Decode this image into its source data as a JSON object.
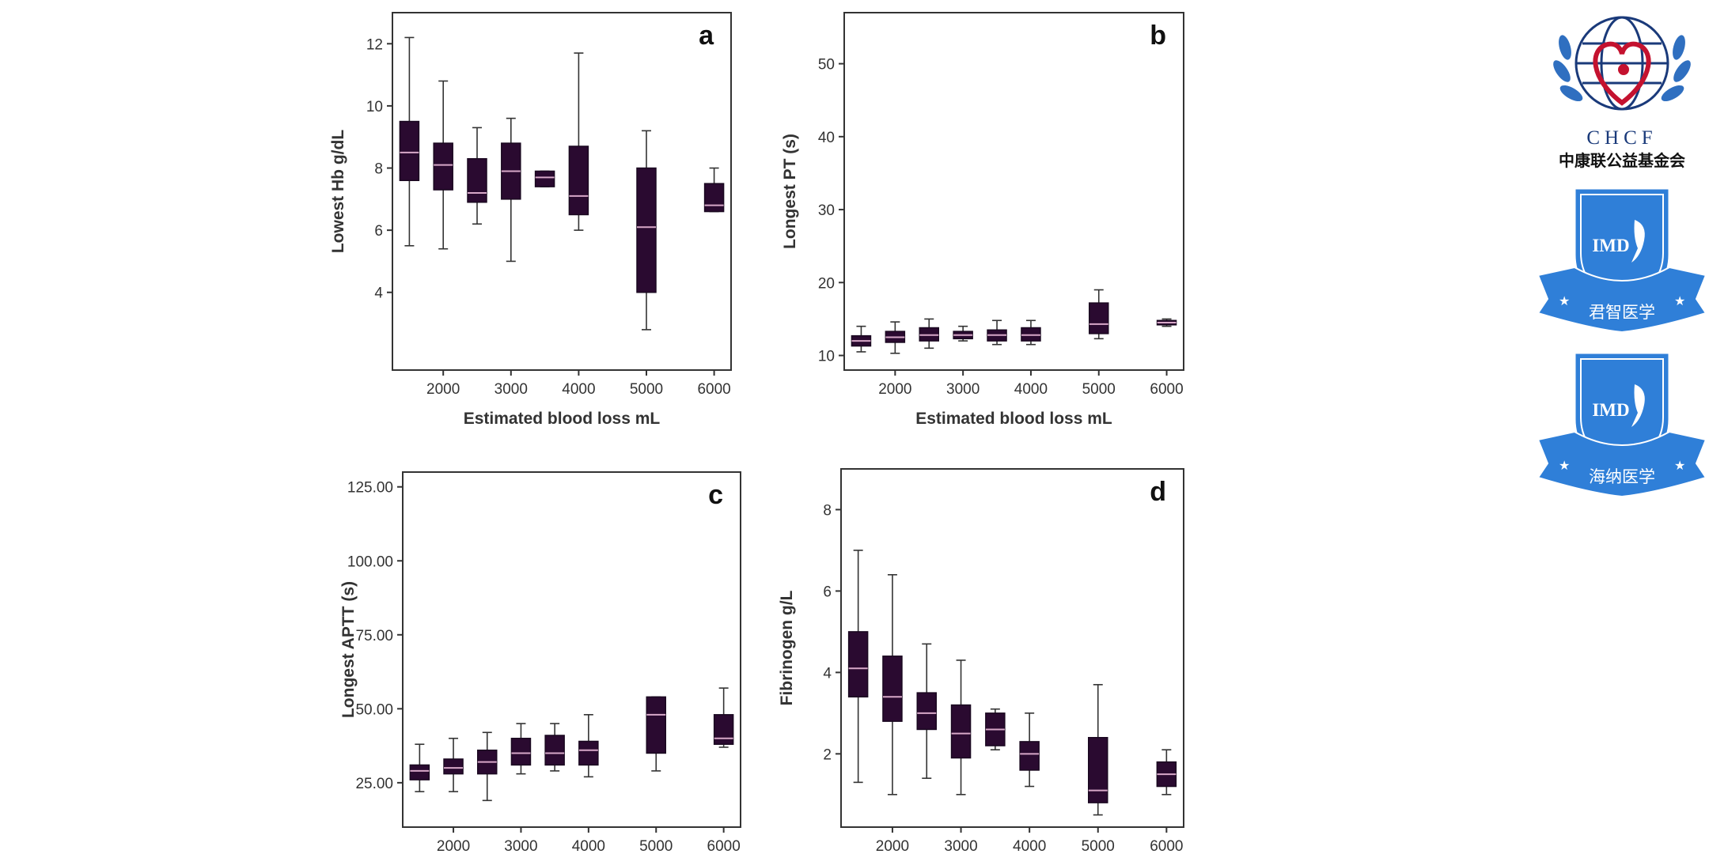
{
  "colors": {
    "box_fill": "#2a0a30",
    "median": "#d7a8c8",
    "axis": "#333333",
    "logo_blue": "#2f7fd8",
    "logo_navy": "#1a3a7a",
    "logo_red": "#c4122f"
  },
  "chart_data": [
    {
      "id": "a",
      "type": "boxplot",
      "panel_label": "a",
      "xlabel": "Estimated blood loss mL",
      "ylabel": "Lowest Hb g/dL",
      "x_ticks": [
        "2000",
        "3000",
        "4000",
        "5000",
        "6000"
      ],
      "x_tick_values": [
        2000,
        3000,
        4000,
        5000,
        6000
      ],
      "xlim": [
        1250,
        6250
      ],
      "ylim": [
        1.5,
        13
      ],
      "y_ticks": [
        4,
        6,
        8,
        10,
        12
      ],
      "y_tick_labels": [
        "4",
        "6",
        "8",
        "10",
        "12"
      ],
      "boxes": [
        {
          "x": 1500,
          "min": 5.5,
          "q1": 7.6,
          "median": 8.5,
          "q3": 9.5,
          "max": 12.2
        },
        {
          "x": 2000,
          "min": 5.4,
          "q1": 7.3,
          "median": 8.1,
          "q3": 8.8,
          "max": 10.8
        },
        {
          "x": 2500,
          "min": 6.2,
          "q1": 6.9,
          "median": 7.2,
          "q3": 8.3,
          "max": 9.3
        },
        {
          "x": 3000,
          "min": 5.0,
          "q1": 7.0,
          "median": 7.9,
          "q3": 8.8,
          "max": 9.6
        },
        {
          "x": 3500,
          "min": 7.4,
          "q1": 7.4,
          "median": 7.7,
          "q3": 7.9,
          "max": 7.9
        },
        {
          "x": 4000,
          "min": 6.0,
          "q1": 6.5,
          "median": 7.1,
          "q3": 8.7,
          "max": 11.7
        },
        {
          "x": 5000,
          "min": 2.8,
          "q1": 4.0,
          "median": 6.1,
          "q3": 8.0,
          "max": 9.2
        },
        {
          "x": 6000,
          "min": 6.6,
          "q1": 6.6,
          "median": 6.8,
          "q3": 7.5,
          "max": 8.0
        }
      ]
    },
    {
      "id": "b",
      "type": "boxplot",
      "panel_label": "b",
      "xlabel": "Estimated blood loss mL",
      "ylabel": "Longest PT (s)",
      "x_ticks": [
        "2000",
        "3000",
        "4000",
        "5000",
        "6000"
      ],
      "x_tick_values": [
        2000,
        3000,
        4000,
        5000,
        6000
      ],
      "xlim": [
        1250,
        6250
      ],
      "ylim": [
        8,
        57
      ],
      "y_ticks": [
        10,
        20,
        30,
        40,
        50
      ],
      "y_tick_labels": [
        "10",
        "20",
        "30",
        "40",
        "50"
      ],
      "boxes": [
        {
          "x": 1500,
          "min": 10.5,
          "q1": 11.3,
          "median": 12.0,
          "q3": 12.7,
          "max": 14.0
        },
        {
          "x": 2000,
          "min": 10.3,
          "q1": 11.8,
          "median": 12.5,
          "q3": 13.3,
          "max": 14.6
        },
        {
          "x": 2500,
          "min": 11.0,
          "q1": 12.0,
          "median": 12.8,
          "q3": 13.8,
          "max": 15.0
        },
        {
          "x": 3000,
          "min": 12.0,
          "q1": 12.3,
          "median": 12.8,
          "q3": 13.3,
          "max": 14.0
        },
        {
          "x": 3500,
          "min": 11.5,
          "q1": 12.0,
          "median": 12.8,
          "q3": 13.5,
          "max": 14.8
        },
        {
          "x": 4000,
          "min": 11.5,
          "q1": 12.0,
          "median": 12.8,
          "q3": 13.8,
          "max": 14.8
        },
        {
          "x": 5000,
          "min": 12.3,
          "q1": 13.0,
          "median": 14.3,
          "q3": 17.2,
          "max": 19.0
        },
        {
          "x": 6000,
          "min": 14.0,
          "q1": 14.2,
          "median": 14.5,
          "q3": 14.8,
          "max": 15.0
        }
      ]
    },
    {
      "id": "c",
      "type": "boxplot",
      "panel_label": "c",
      "xlabel": "",
      "ylabel": "Longest APTT (s)",
      "x_ticks": [
        "2000",
        "3000",
        "4000",
        "5000",
        "6000"
      ],
      "x_tick_values": [
        2000,
        3000,
        4000,
        5000,
        6000
      ],
      "xlim": [
        1250,
        6250
      ],
      "ylim": [
        10,
        130
      ],
      "y_ticks": [
        25,
        50,
        75,
        100,
        125
      ],
      "y_tick_labels": [
        "25.00",
        "50.00",
        "75.00",
        "100.00",
        "125.00"
      ],
      "boxes": [
        {
          "x": 1500,
          "min": 22,
          "q1": 26,
          "median": 29,
          "q3": 31,
          "max": 38
        },
        {
          "x": 2000,
          "min": 22,
          "q1": 28,
          "median": 30,
          "q3": 33,
          "max": 40
        },
        {
          "x": 2500,
          "min": 19,
          "q1": 28,
          "median": 32,
          "q3": 36,
          "max": 42
        },
        {
          "x": 3000,
          "min": 28,
          "q1": 31,
          "median": 35,
          "q3": 40,
          "max": 45
        },
        {
          "x": 3500,
          "min": 29,
          "q1": 31,
          "median": 35,
          "q3": 41,
          "max": 45
        },
        {
          "x": 4000,
          "min": 27,
          "q1": 31,
          "median": 36,
          "q3": 39,
          "max": 48
        },
        {
          "x": 5000,
          "min": 29,
          "q1": 35,
          "median": 48,
          "q3": 54,
          "max": 54
        },
        {
          "x": 6000,
          "min": 37,
          "q1": 38,
          "median": 40,
          "q3": 48,
          "max": 57
        }
      ]
    },
    {
      "id": "d",
      "type": "boxplot",
      "panel_label": "d",
      "xlabel": "",
      "ylabel": "Fibrinogen g/L",
      "x_ticks": [
        "2000",
        "3000",
        "4000",
        "5000",
        "6000"
      ],
      "x_tick_values": [
        2000,
        3000,
        4000,
        5000,
        6000
      ],
      "xlim": [
        1250,
        6250
      ],
      "ylim": [
        0.2,
        9.0
      ],
      "y_ticks": [
        2,
        4,
        6,
        8
      ],
      "y_tick_labels": [
        "2",
        "4",
        "6",
        "8"
      ],
      "boxes": [
        {
          "x": 1500,
          "min": 1.3,
          "q1": 3.4,
          "median": 4.1,
          "q3": 5.0,
          "max": 7.0
        },
        {
          "x": 2000,
          "min": 1.0,
          "q1": 2.8,
          "median": 3.4,
          "q3": 4.4,
          "max": 6.4
        },
        {
          "x": 2500,
          "min": 1.4,
          "q1": 2.6,
          "median": 3.0,
          "q3": 3.5,
          "max": 4.7
        },
        {
          "x": 3000,
          "min": 1.0,
          "q1": 1.9,
          "median": 2.5,
          "q3": 3.2,
          "max": 4.3
        },
        {
          "x": 3500,
          "min": 2.1,
          "q1": 2.2,
          "median": 2.6,
          "q3": 3.0,
          "max": 3.1
        },
        {
          "x": 4000,
          "min": 1.2,
          "q1": 1.6,
          "median": 2.0,
          "q3": 2.3,
          "max": 3.0
        },
        {
          "x": 5000,
          "min": 0.5,
          "q1": 0.8,
          "median": 1.1,
          "q3": 2.4,
          "max": 3.7
        },
        {
          "x": 6000,
          "min": 1.0,
          "q1": 1.2,
          "median": 1.5,
          "q3": 1.8,
          "max": 2.1
        }
      ]
    }
  ],
  "sidebar": {
    "chcf_logo": {
      "en": "CHCF",
      "cn": "中康联公益基金会"
    },
    "badge1": {
      "abbr": "IMD",
      "cn": "君智医学"
    },
    "badge2": {
      "abbr": "IMD",
      "cn": "海纳医学"
    }
  }
}
